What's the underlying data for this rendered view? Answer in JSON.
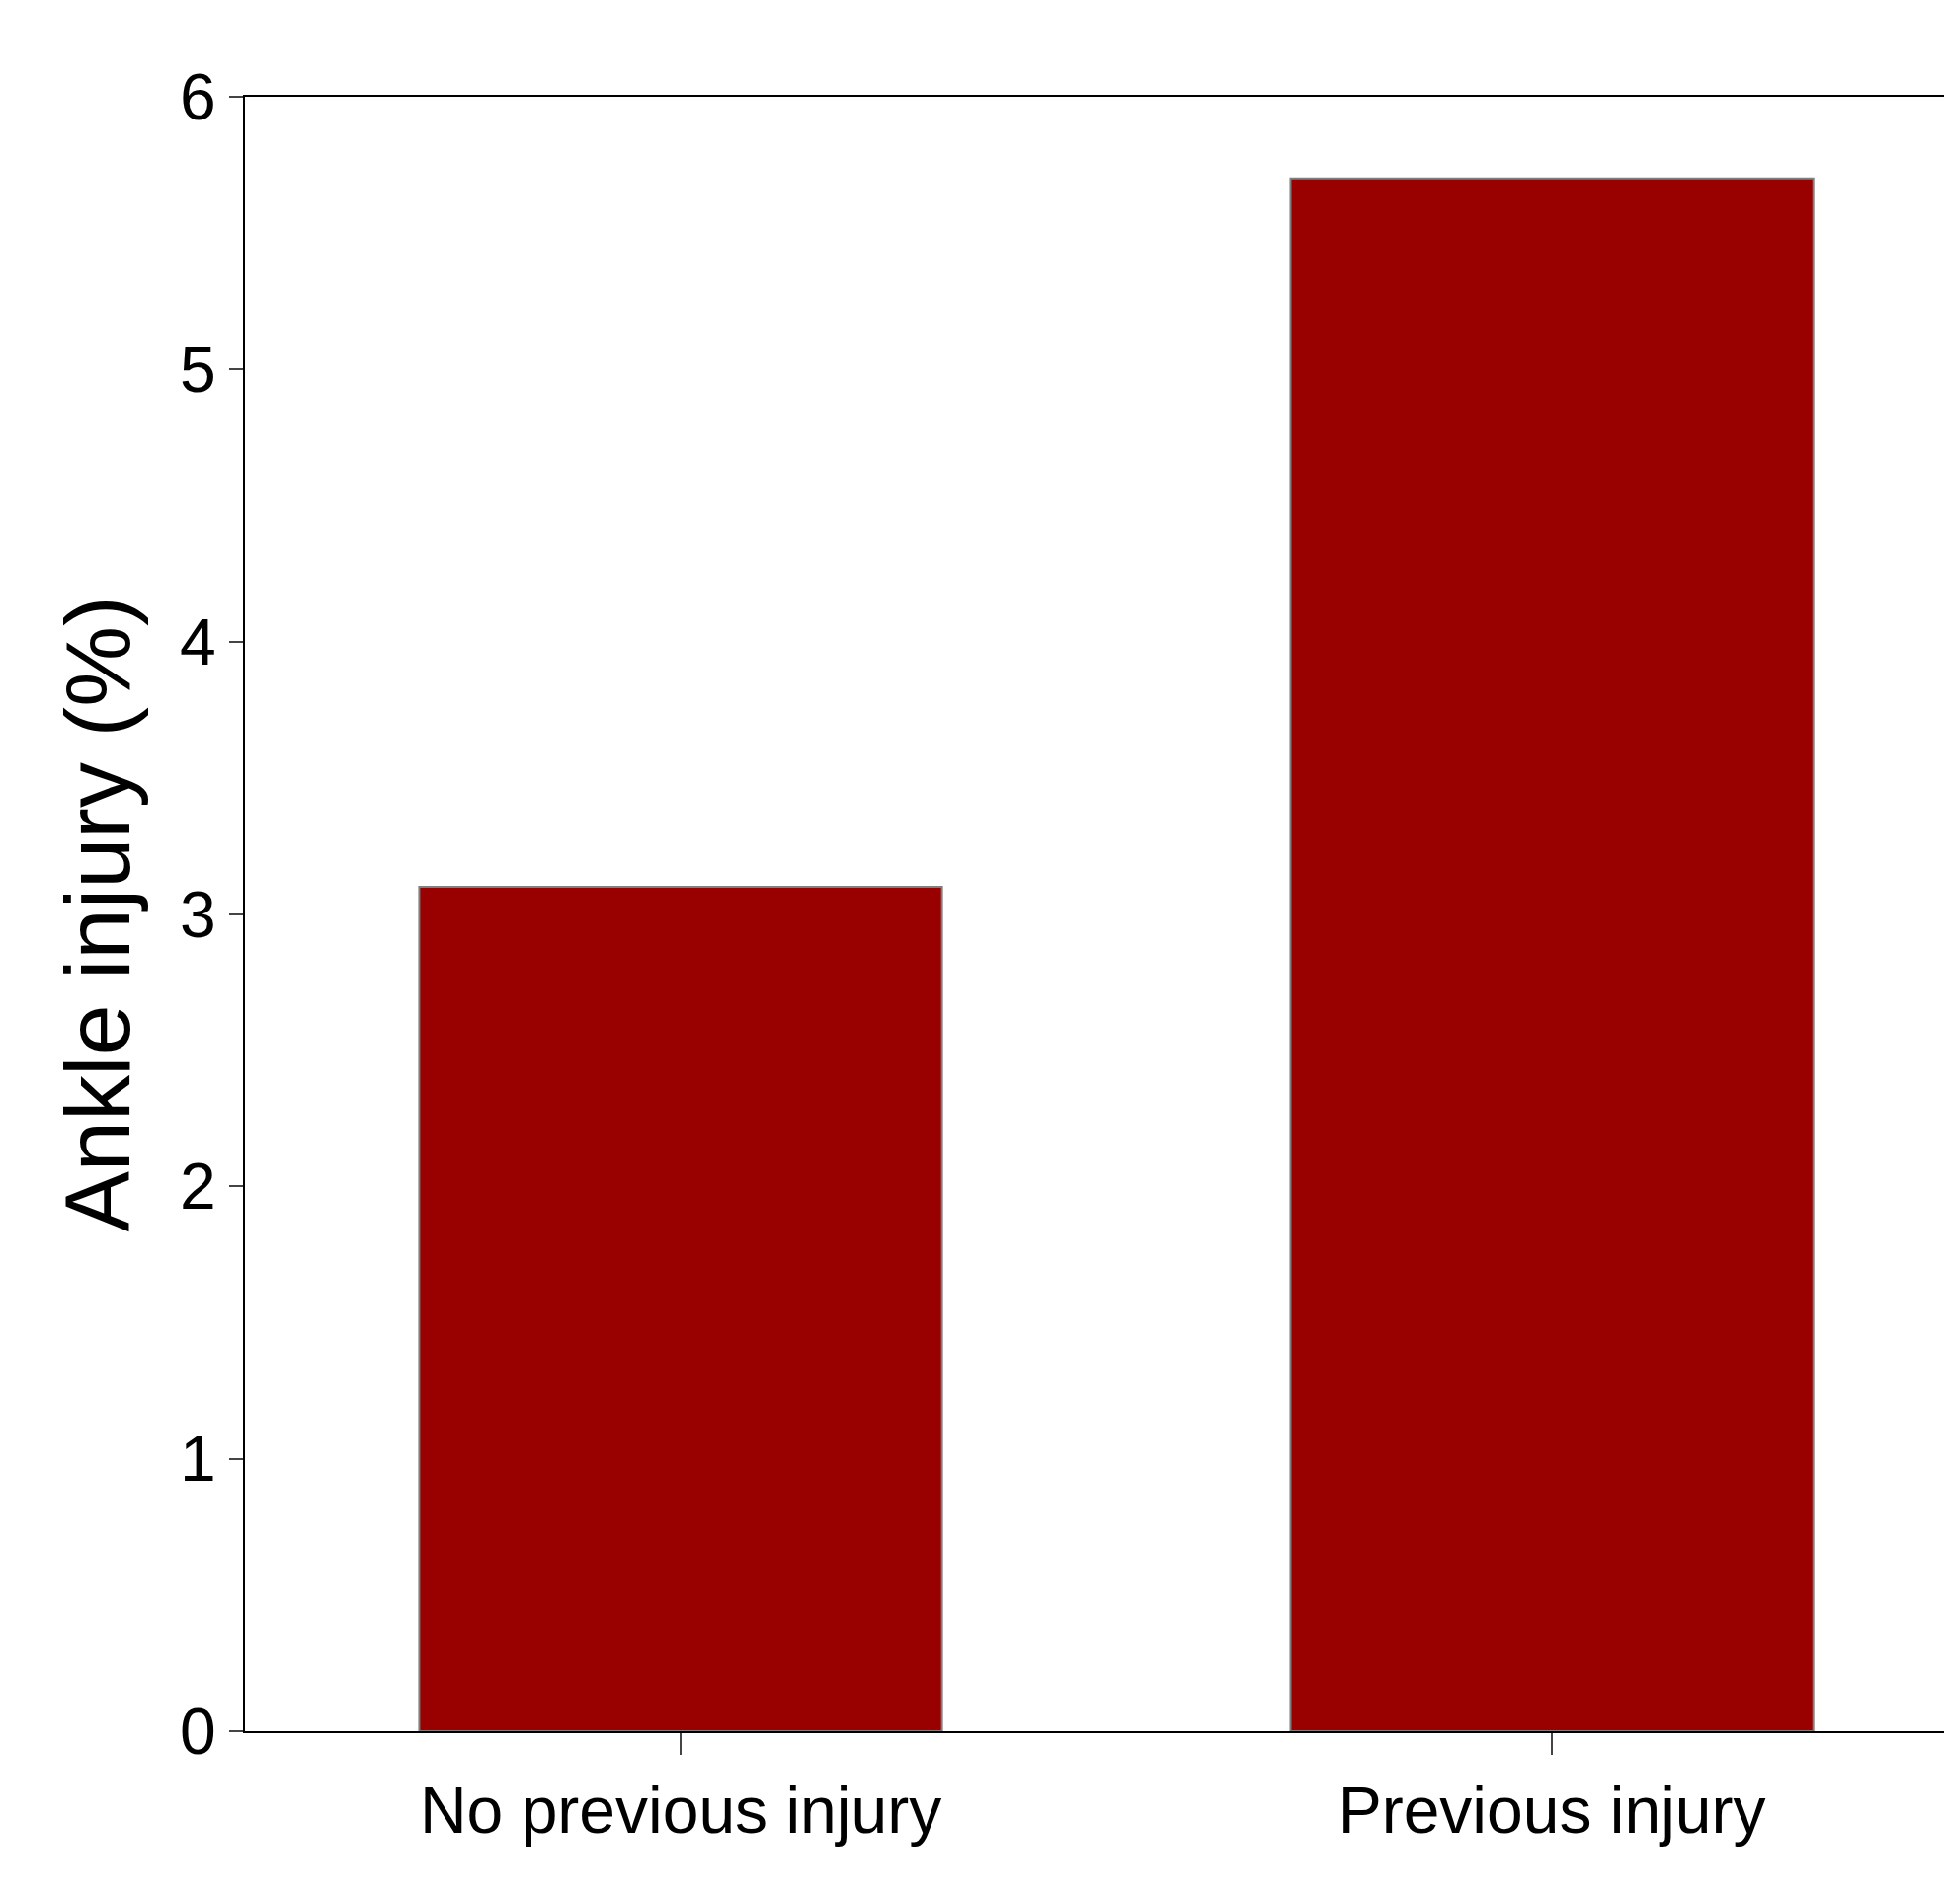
{
  "chart_data": {
    "type": "bar",
    "ylabel": "Ankle injury (%)",
    "categories": [
      "No previous injury",
      "Previous injury"
    ],
    "values": [
      3.1,
      5.7
    ],
    "color": "#990000",
    "ylim": [
      0,
      6
    ],
    "yticks": [
      0,
      1,
      2,
      3,
      4,
      5,
      6
    ],
    "grid": false
  }
}
